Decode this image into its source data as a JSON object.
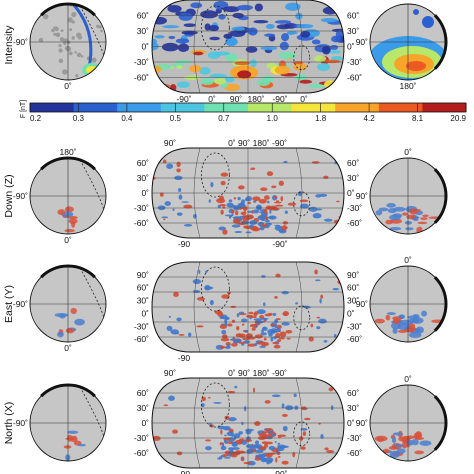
{
  "rows": [
    {
      "title": "Intensity",
      "left_polar": {
        "top": "",
        "left": "-90˚",
        "bottom": "0˚",
        "right": ""
      },
      "map": {
        "top": [
          "",
          ""
        ],
        "left": [
          "60˚",
          "30˚",
          "0˚",
          "-30˚",
          "-60˚"
        ],
        "right": [
          "60˚",
          "30˚",
          "0˚",
          "-30˚",
          "-60˚"
        ],
        "bottom": [
          "-90˚",
          "0˚",
          "90˚",
          "180˚",
          "-90˚",
          "0˚"
        ]
      },
      "right_polar": {
        "top": "",
        "left": "90˚",
        "bottom": "180˚",
        "right": ""
      }
    },
    {
      "title": "Down (Z)",
      "left_polar": {
        "top": "180˚",
        "left": "-90˚",
        "bottom": "0˚",
        "right": ""
      },
      "map": {
        "top": [
          "90˚",
          "0˚   90˚  180˚  -90˚"
        ],
        "left": [
          "60˚",
          "30˚",
          "0˚",
          "-30˚",
          "-60˚"
        ],
        "right": [
          "60˚",
          "30˚",
          "0˚",
          "-30˚",
          "-60˚"
        ],
        "bottom": [
          "-90",
          "",
          "",
          "",
          "-90˚",
          ""
        ]
      },
      "right_polar": {
        "top": "0˚",
        "left": "90˚",
        "bottom": "",
        "right": ""
      }
    },
    {
      "title": "East (Y)",
      "left_polar": {
        "top": "",
        "left": "-90˚",
        "bottom": "0˚",
        "right": ""
      },
      "map": {
        "top": [
          "",
          ""
        ],
        "left": [
          "90˚",
          "60˚",
          "30˚",
          "0˚",
          "-30˚",
          "-60˚"
        ],
        "right": [
          "90˚",
          "60˚",
          "30˚",
          "0˚",
          "-30˚",
          "-60˚"
        ],
        "bottom": [
          "-90",
          "",
          "",
          "",
          "",
          ""
        ]
      },
      "right_polar": {
        "top": "0˚",
        "left": "90˚",
        "bottom": "",
        "right": ""
      }
    },
    {
      "title": "North (X)",
      "left_polar": {
        "top": "",
        "left": "-90˚",
        "bottom": "",
        "right": ""
      },
      "map": {
        "top": [
          "90˚",
          "0˚   90˚  180˚  -90˚"
        ],
        "left": [
          "60˚",
          "30˚",
          "0˚",
          "-30˚",
          "-60˚"
        ],
        "right": [
          "60˚",
          "30˚",
          "0˚",
          "-30˚",
          "-60˚"
        ],
        "bottom": [
          "-90",
          "",
          "",
          "",
          "-90˚",
          ""
        ]
      },
      "right_polar": {
        "top": "0˚",
        "left": "90˚",
        "bottom": "",
        "right": ""
      }
    }
  ],
  "colorbar": {
    "unit_label": "F [nT]",
    "ticks": [
      "0.2",
      "0.3",
      "0.4",
      "0.5",
      "0.7",
      "1.0",
      "1.8",
      "4.2",
      "8.1",
      "20.9"
    ],
    "colors": [
      "#23339a",
      "#2c5fd0",
      "#3c9be8",
      "#4cc6e0",
      "#6fe0b0",
      "#b8e86a",
      "#f4e53a",
      "#f7a42b",
      "#ea5a22",
      "#b41e1e"
    ]
  }
}
